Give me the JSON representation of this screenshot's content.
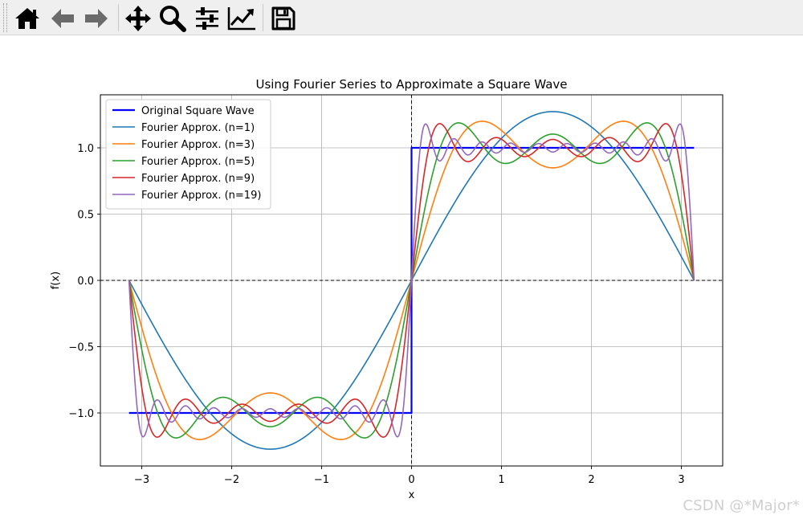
{
  "toolbar": {
    "buttons": [
      {
        "name": "home-icon",
        "label": "Home"
      },
      {
        "name": "back-icon",
        "label": "Back"
      },
      {
        "name": "forward-icon",
        "label": "Forward"
      },
      {
        "name": "pan-icon",
        "label": "Pan"
      },
      {
        "name": "zoom-icon",
        "label": "Zoom"
      },
      {
        "name": "subplots-icon",
        "label": "Configure subplots"
      },
      {
        "name": "edit-axis-icon",
        "label": "Edit axis"
      },
      {
        "name": "save-icon",
        "label": "Save"
      }
    ]
  },
  "watermark": "CSDN @*Major*",
  "chart_data": {
    "type": "line",
    "title": "Using Fourier Series to Approximate a Square Wave",
    "xlabel": "x",
    "ylabel": "f(x)",
    "xlim": [
      -3.46,
      3.46
    ],
    "ylim": [
      -1.4,
      1.4
    ],
    "xticks": [
      -3,
      -2,
      -1,
      0,
      1,
      2,
      3
    ],
    "xtick_labels": [
      "−3",
      "−2",
      "−1",
      "0",
      "1",
      "2",
      "3"
    ],
    "yticks": [
      -1.0,
      -0.5,
      0.0,
      0.5,
      1.0
    ],
    "ytick_labels": [
      "−1.0",
      "−0.5",
      "0.0",
      "0.5",
      "1.0"
    ],
    "grid": true,
    "legend_position": "upper left",
    "x_domain": [
      -3.14159,
      3.14159
    ],
    "reference_lines": [
      {
        "axis": "x",
        "value": 0,
        "style": "dashed",
        "color": "#000000"
      },
      {
        "axis": "y",
        "value": 0,
        "style": "dashed",
        "color": "#000000"
      }
    ],
    "series": [
      {
        "name": "Original Square Wave",
        "kind": "square",
        "color": "#0000ff",
        "width": 2.2
      },
      {
        "name": "Fourier Approx. (n=1)",
        "kind": "fourier",
        "n": 1,
        "color": "#1f77b4",
        "width": 1.6
      },
      {
        "name": "Fourier Approx. (n=3)",
        "kind": "fourier",
        "n": 3,
        "color": "#ff7f0e",
        "width": 1.6
      },
      {
        "name": "Fourier Approx. (n=5)",
        "kind": "fourier",
        "n": 5,
        "color": "#2ca02c",
        "width": 1.6
      },
      {
        "name": "Fourier Approx. (n=9)",
        "kind": "fourier",
        "n": 9,
        "color": "#d62728",
        "width": 1.6
      },
      {
        "name": "Fourier Approx. (n=19)",
        "kind": "fourier",
        "n": 19,
        "color": "#9467bd",
        "width": 1.6
      }
    ]
  }
}
